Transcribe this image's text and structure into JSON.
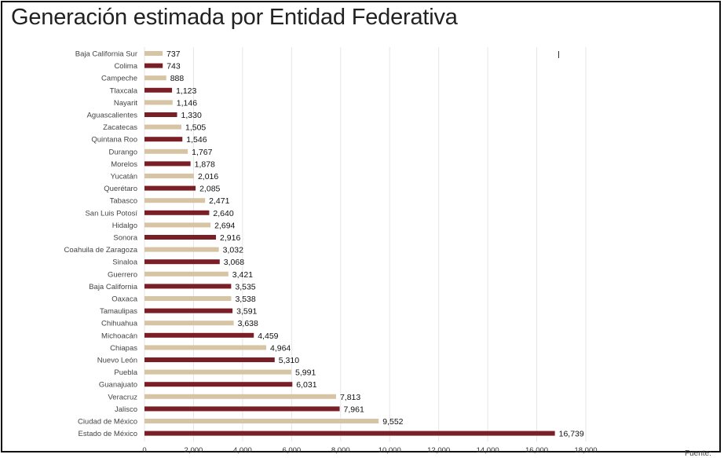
{
  "title": "Generación estimada por Entidad Federativa",
  "footer_note": "Fuente:",
  "colors": {
    "light": "#d6c4a4",
    "dark": "#7b1f27",
    "grid": "#e6e6e6",
    "text": "#333333"
  },
  "chart_data": {
    "type": "bar",
    "orientation": "horizontal",
    "title": "Generación estimada por Entidad Federativa",
    "xlim": [
      0,
      18000
    ],
    "x_ticks": [
      "0",
      "2,000",
      "4,000",
      "6,000",
      "8,000",
      "10,000",
      "12,000",
      "14,000",
      "16,000",
      "18,000"
    ],
    "grid": true,
    "categories": [
      "Baja California Sur",
      "Colima",
      "Campeche",
      "Tlaxcala",
      "Nayarit",
      "Aguascalientes",
      "Zacatecas",
      "Quintana Roo",
      "Durango",
      "Morelos",
      "Yucatán",
      "Querétaro",
      "Tabasco",
      "San Luis Potosí",
      "Hidalgo",
      "Sonora",
      "Coahuila de Zaragoza",
      "Sinaloa",
      "Guerrero",
      "Baja California",
      "Oaxaca",
      "Tamaulipas",
      "Chihuahua",
      "Michoacán",
      "Chiapas",
      "Nuevo León",
      "Puebla",
      "Guanajuato",
      "Veracruz",
      "Jalisco",
      "Ciudad de México",
      "Estado de México"
    ],
    "values": [
      737,
      743,
      888,
      1123,
      1146,
      1330,
      1505,
      1546,
      1767,
      1878,
      2016,
      2085,
      2471,
      2640,
      2694,
      2916,
      3032,
      3068,
      3421,
      3535,
      3538,
      3591,
      3638,
      4459,
      4964,
      5310,
      5991,
      6031,
      7813,
      7961,
      9552,
      16739
    ],
    "value_labels": [
      "737",
      "743",
      "888",
      "1,123",
      "1,146",
      "1,330",
      "1,505",
      "1,546",
      "1,767",
      "1,878",
      "2,016",
      "2,085",
      "2,471",
      "2,640",
      "2,694",
      "2,916",
      "3,032",
      "3,068",
      "3,421",
      "3,535",
      "3,538",
      "3,591",
      "3,638",
      "4,459",
      "4,964",
      "5,310",
      "5,991",
      "6,031",
      "7,813",
      "7,961",
      "9,552",
      "16,739"
    ],
    "bar_colors": [
      "light",
      "dark",
      "light",
      "dark",
      "light",
      "dark",
      "light",
      "dark",
      "light",
      "dark",
      "light",
      "dark",
      "light",
      "dark",
      "light",
      "dark",
      "light",
      "dark",
      "light",
      "dark",
      "light",
      "dark",
      "light",
      "dark",
      "light",
      "dark",
      "light",
      "dark",
      "light",
      "dark",
      "light",
      "dark"
    ]
  }
}
